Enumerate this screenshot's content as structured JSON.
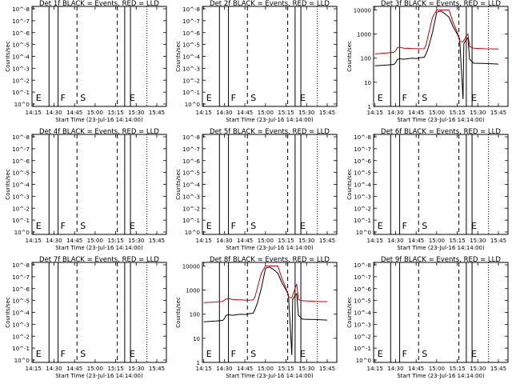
{
  "chart_data": [
    {
      "type": "line",
      "title": "Det 1f BLACK = Events, RED = LLD",
      "xlabel": "Start Time (23-Jul-16 14:14:00)",
      "ylabel": "Counts/sec",
      "yscale": "log",
      "ytick_labels": [
        "10^0",
        "10^-1",
        "10^-2",
        "10^-3",
        "10^-4",
        "10^-5",
        "10^-6",
        "10^-7",
        "10^-8"
      ],
      "xtick_labels": [
        "14:15",
        "14:30",
        "14:45",
        "15:00",
        "15:15",
        "15:30",
        "15:45"
      ],
      "markers": [
        "E",
        "F",
        "S",
        "E"
      ],
      "series": []
    },
    {
      "type": "line",
      "title": "Det 2f BLACK = Events, RED = LLD",
      "xlabel": "Start Time (23-Jul-16 14:14:00)",
      "ylabel": "Counts/sec",
      "yscale": "log",
      "ytick_labels": [
        "10^0",
        "10^-1",
        "10^-2",
        "10^-3",
        "10^-4",
        "10^-5",
        "10^-6",
        "10^-7",
        "10^-8"
      ],
      "xtick_labels": [
        "14:15",
        "14:30",
        "14:45",
        "15:00",
        "15:15",
        "15:30",
        "15:45"
      ],
      "markers": [
        "E",
        "F",
        "S",
        "E"
      ],
      "series": []
    },
    {
      "type": "line",
      "title": "Det 3f BLACK = Events, RED = LLD",
      "xlabel": "Start Time (23-Jul-16 14:14:00)",
      "ylabel": "Counts/sec",
      "yscale": "log",
      "ytick_labels": [
        "1",
        "10",
        "100",
        "1000",
        "10000"
      ],
      "xtick_labels": [
        "14:15",
        "14:30",
        "14:45",
        "15:00",
        "15:15",
        "15:30",
        "15:45"
      ],
      "markers": [
        "E",
        "F",
        "S",
        "E"
      ],
      "series": [
        {
          "color": "#000000",
          "x": [
            14.25,
            14.4,
            14.48,
            14.5,
            14.52,
            14.55,
            14.6,
            14.65,
            14.7,
            14.75,
            14.8,
            14.85,
            14.87,
            14.9,
            14.95,
            15.0,
            15.05,
            15.1,
            15.15,
            15.2,
            15.25,
            15.28,
            15.32,
            15.33,
            15.36,
            15.38,
            15.4,
            15.45,
            15.6,
            15.75
          ],
          "y": [
            48,
            52,
            55,
            65,
            88,
            95,
            90,
            95,
            100,
            97,
            105,
            110,
            150,
            280,
            1200,
            8000,
            9000,
            7000,
            5000,
            2000,
            1000,
            620,
            2,
            400,
            600,
            700,
            90,
            62,
            60,
            57
          ]
        },
        {
          "color": "#cc0000",
          "x": [
            14.25,
            14.4,
            14.48,
            14.5,
            14.52,
            14.55,
            14.6,
            14.65,
            14.7,
            14.75,
            14.8,
            14.85,
            14.87,
            14.9,
            14.95,
            15.0,
            15.05,
            15.1,
            15.15,
            15.2,
            15.25,
            15.28,
            15.32,
            15.36,
            15.38,
            15.4,
            15.45,
            15.6,
            15.75
          ],
          "y": [
            150,
            165,
            175,
            200,
            270,
            285,
            260,
            255,
            250,
            248,
            245,
            250,
            350,
            1000,
            5000,
            10000,
            10000,
            10000,
            10000,
            3000,
            1200,
            500,
            480,
            820,
            1000,
            300,
            260,
            245,
            240
          ]
        }
      ]
    },
    {
      "type": "line",
      "title": "Det 4f BLACK = Events, RED = LLD",
      "xlabel": "Start Time (23-Jul-16 14:14:00)",
      "ylabel": "Counts/sec",
      "yscale": "log",
      "ytick_labels": [
        "10^0",
        "10^-1",
        "10^-2",
        "10^-3",
        "10^-4",
        "10^-5",
        "10^-6",
        "10^-7",
        "10^-8"
      ],
      "xtick_labels": [
        "14:15",
        "14:30",
        "14:45",
        "15:00",
        "15:15",
        "15:30",
        "15:45"
      ],
      "markers": [
        "E",
        "F",
        "S",
        "E"
      ],
      "series": []
    },
    {
      "type": "line",
      "title": "Det 5f BLACK = Events, RED = LLD",
      "xlabel": "Start Time (23-Jul-16 14:14:00)",
      "ylabel": "Counts/sec",
      "yscale": "log",
      "ytick_labels": [
        "10^0",
        "10^-1",
        "10^-2",
        "10^-3",
        "10^-4",
        "10^-5",
        "10^-6",
        "10^-7",
        "10^-8"
      ],
      "xtick_labels": [
        "14:15",
        "14:30",
        "14:45",
        "15:00",
        "15:15",
        "15:30",
        "15:45"
      ],
      "markers": [
        "E",
        "F",
        "S",
        "E"
      ],
      "series": []
    },
    {
      "type": "line",
      "title": "Det 6f BLACK = Events, RED = LLD",
      "xlabel": "Start Time (23-Jul-16 14:14:00)",
      "ylabel": "Counts/sec",
      "yscale": "log",
      "ytick_labels": [
        "10^0",
        "10^-1",
        "10^-2",
        "10^-3",
        "10^-4",
        "10^-5",
        "10^-6",
        "10^-7",
        "10^-8"
      ],
      "xtick_labels": [
        "14:15",
        "14:30",
        "14:45",
        "15:00",
        "15:15",
        "15:30",
        "15:45"
      ],
      "markers": [
        "E",
        "F",
        "S",
        "E"
      ],
      "series": []
    },
    {
      "type": "line",
      "title": "Det 7f BLACK = Events, RED = LLD",
      "xlabel": "Start Time (23-Jul-16 14:14:00)",
      "ylabel": "Counts/sec",
      "yscale": "log",
      "ytick_labels": [
        "10^0",
        "10^-1",
        "10^-2",
        "10^-3",
        "10^-4",
        "10^-5",
        "10^-6",
        "10^-7",
        "10^-8"
      ],
      "xtick_labels": [
        "14:15",
        "14:30",
        "14:45",
        "15:00",
        "15:15",
        "15:30",
        "15:45"
      ],
      "markers": [
        "E",
        "F",
        "S",
        "E"
      ],
      "series": []
    },
    {
      "type": "line",
      "title": "Det 8f BLACK = Events, RED = LLD",
      "xlabel": "Start Time (23-Jul-16 14:14:00)",
      "ylabel": "Counts/sec",
      "yscale": "log",
      "ytick_labels": [
        "1",
        "10",
        "100",
        "1000",
        "10000"
      ],
      "xtick_labels": [
        "14:15",
        "14:30",
        "14:45",
        "15:00",
        "15:15",
        "15:30",
        "15:45"
      ],
      "markers": [
        "E",
        "F",
        "S",
        "E"
      ],
      "series": [
        {
          "color": "#000000",
          "x": [
            14.25,
            14.4,
            14.48,
            14.5,
            14.52,
            14.55,
            14.6,
            14.65,
            14.7,
            14.75,
            14.8,
            14.85,
            14.87,
            14.9,
            14.95,
            15.0,
            15.05,
            15.1,
            15.15,
            15.2,
            15.25,
            15.28,
            15.32,
            15.33,
            15.36,
            15.38,
            15.4,
            15.45,
            15.6,
            15.75
          ],
          "y": [
            48,
            52,
            55,
            65,
            88,
            95,
            90,
            95,
            100,
            97,
            105,
            110,
            150,
            280,
            1200,
            8000,
            9000,
            7000,
            5000,
            2000,
            1000,
            620,
            2,
            400,
            600,
            700,
            90,
            62,
            60,
            57
          ]
        },
        {
          "color": "#cc0000",
          "x": [
            14.25,
            14.4,
            14.48,
            14.5,
            14.52,
            14.55,
            14.6,
            14.65,
            14.7,
            14.75,
            14.8,
            14.85,
            14.87,
            14.9,
            14.95,
            15.0,
            15.05,
            15.1,
            15.15,
            15.2,
            15.25,
            15.28,
            15.32,
            15.36,
            15.38,
            15.4,
            15.45,
            15.6,
            15.75
          ],
          "y": [
            300,
            320,
            340,
            380,
            420,
            440,
            410,
            400,
            390,
            385,
            380,
            390,
            500,
            1200,
            5000,
            10000,
            10000,
            10000,
            10000,
            3000,
            1200,
            500,
            480,
            1200,
            1800,
            400,
            360,
            340,
            330
          ]
        }
      ]
    },
    {
      "type": "line",
      "title": "Det 9f BLACK = Events, RED = LLD",
      "xlabel": "Start Time (23-Jul-16 14:14:00)",
      "ylabel": "Counts/sec",
      "yscale": "log",
      "ytick_labels": [
        "10^0",
        "10^-1",
        "10^-2",
        "10^-3",
        "10^-4",
        "10^-5",
        "10^-6",
        "10^-7",
        "10^-8"
      ],
      "xtick_labels": [
        "14:15",
        "14:30",
        "14:45",
        "15:00",
        "15:15",
        "15:30",
        "15:45"
      ],
      "markers": [
        "E",
        "F",
        "S",
        "E"
      ],
      "series": []
    }
  ]
}
